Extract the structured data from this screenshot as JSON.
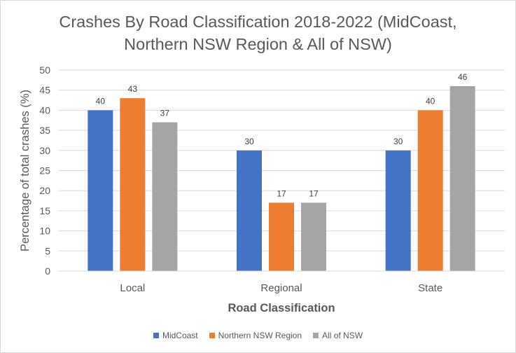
{
  "chart_data": {
    "type": "bar",
    "title_lines": [
      "Crashes By Road Classification 2018-2022 (MidCoast,",
      "Northern NSW Region & All of NSW)"
    ],
    "xlabel": "Road Classification",
    "ylabel": "Percentage of total crashes (%)",
    "categories": [
      "Local",
      "Regional",
      "State"
    ],
    "series": [
      {
        "name": "MidCoast",
        "color": "#4472c4",
        "values": [
          40,
          30,
          30
        ]
      },
      {
        "name": "Northern NSW Region",
        "color": "#ed7d31",
        "values": [
          43,
          17,
          40
        ]
      },
      {
        "name": "All of NSW",
        "color": "#a5a5a5",
        "values": [
          37,
          17,
          46
        ]
      }
    ],
    "ylim": [
      0,
      50
    ],
    "yticks": [
      0,
      5,
      10,
      15,
      20,
      25,
      30,
      35,
      40,
      45,
      50
    ],
    "grid": true,
    "legend_position": "bottom"
  }
}
